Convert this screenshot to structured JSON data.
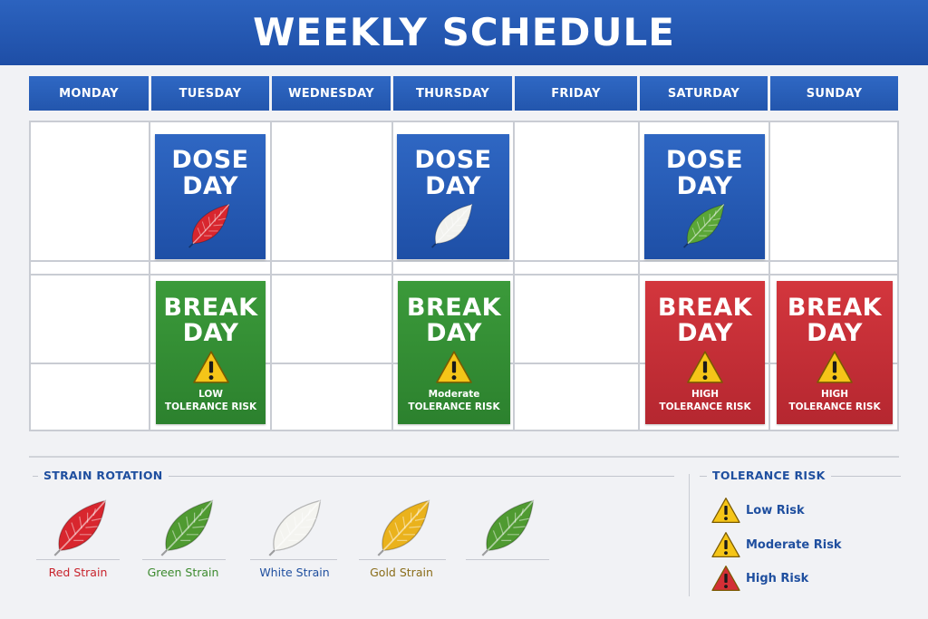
{
  "header": {
    "title": "WEEKLY SCHEDULE"
  },
  "days": [
    "MONDAY",
    "TUESDAY",
    "WEDNESDAY",
    "THURSDAY",
    "FRIDAY",
    "SATURDAY",
    "SUNDAY"
  ],
  "cards": {
    "tue_dose": {
      "title": "DOSE\nDAY",
      "leaf": "red-leaf-icon"
    },
    "thu_dose": {
      "title": "DOSE\nDAY",
      "leaf": "white-leaf-icon"
    },
    "sat_dose": {
      "title": "DOSE\nDAY",
      "leaf": "green-leaf-icon"
    },
    "tue_break": {
      "title": "BREAK\nDAY",
      "risk": "LOW\nTOLERANCE RISK",
      "icon": "warning-yellow-icon"
    },
    "thu_break": {
      "title": "BREAK\nDAY",
      "risk": "Moderate\nTOLERANCE RISK",
      "icon": "warning-yellow-icon"
    },
    "sat_break": {
      "title": "BREAK\nDAY",
      "risk": "HIGH\nTOLERANCE RISK",
      "icon": "warning-yellow-icon"
    },
    "sun_break": {
      "title": "BREAK\nDAY",
      "risk": "HIGH\nTOLERANCE RISK",
      "icon": "warning-yellow-icon"
    }
  },
  "strain_rotation": {
    "title": "STRAIN ROTATION",
    "items": [
      {
        "label": "Red Strain",
        "color": "#c8232c",
        "icon": "red-leaf-icon"
      },
      {
        "label": "Green Strain",
        "color": "#3c8a2e",
        "icon": "green-leaf-icon"
      },
      {
        "label": "White Strain",
        "color": "#1f4f9f",
        "icon": "white-leaf-icon"
      },
      {
        "label": "Gold Strain",
        "color": "#8a6d1a",
        "icon": "gold-leaf-icon"
      },
      {
        "label": "",
        "color": "#3c8a2e",
        "icon": "green-leaf-icon"
      }
    ]
  },
  "tolerance_risk": {
    "title": "TOLERANCE RISK",
    "items": [
      {
        "label": "Low Risk",
        "icon": "warning-yellow-icon"
      },
      {
        "label": "Moderate Risk",
        "icon": "warning-yellow-icon"
      },
      {
        "label": "High Risk",
        "icon": "warning-red-icon"
      }
    ]
  },
  "colors": {
    "dose_blue": "#2356ad",
    "break_green": "#2f8a31",
    "break_red": "#c22e36",
    "warning_yellow": "#f5c518",
    "warning_red": "#d32f36"
  }
}
